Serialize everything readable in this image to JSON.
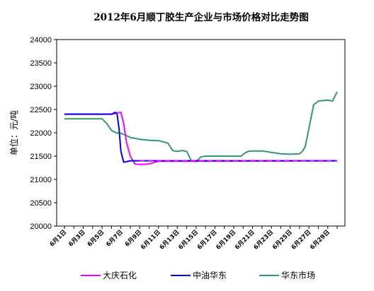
{
  "chart_data": {
    "type": "line",
    "title": "2012年6月顺丁胶生产企业与市场价格对比走势图",
    "xlabel": "",
    "ylabel": "单位：元/吨",
    "ylim": [
      20000,
      24000
    ],
    "yticks": [
      20000,
      20500,
      21000,
      21500,
      22000,
      22500,
      23000,
      23500,
      24000
    ],
    "x_tick_labels": [
      "6月1日",
      "6月3日",
      "6月5日",
      "6月7日",
      "6月9日",
      "6月11日",
      "6月13日",
      "6月15日",
      "6月17日",
      "6月19日",
      "6月21日",
      "6月23日",
      "6月25日",
      "6月27日",
      "6月29日"
    ],
    "x_range": [
      1,
      30
    ],
    "grid": false,
    "legend_position": "bottom",
    "series": [
      {
        "name": "大庆石化",
        "color": "#ff00ff",
        "x": [
          1,
          2,
          3,
          4,
          5,
          6,
          6.5,
          7,
          7.3,
          7.6,
          8,
          8.5,
          9,
          10,
          11,
          30
        ],
        "values": [
          22400,
          22400,
          22400,
          22400,
          22400,
          22400,
          22420,
          22440,
          22200,
          21800,
          21500,
          21330,
          21320,
          21330,
          21390,
          21400
        ]
      },
      {
        "name": "中油华东",
        "color": "#0000ff",
        "x": [
          1,
          2,
          3,
          4,
          5,
          6,
          6.4,
          6.6,
          6.8,
          7,
          7.3,
          7.6,
          8,
          8.5,
          9,
          10,
          11,
          30
        ],
        "values": [
          22400,
          22400,
          22400,
          22400,
          22400,
          22400,
          22440,
          22400,
          22100,
          21600,
          21370,
          21380,
          21400,
          21400,
          21400,
          21400,
          21400,
          21400
        ]
      },
      {
        "name": "华东市场",
        "color": "#339966",
        "x": [
          1,
          2,
          3,
          4,
          5,
          5.5,
          6,
          6.5,
          7,
          7.5,
          8,
          8.5,
          9,
          10,
          11,
          12,
          12.5,
          13,
          13.5,
          14,
          14.5,
          15,
          15.5,
          16,
          16.5,
          17,
          18,
          19,
          19.8,
          20,
          20.5,
          21,
          22,
          23,
          24,
          25,
          26,
          26.3,
          26.6,
          27,
          27.5,
          28,
          29,
          29.5,
          30
        ],
        "values": [
          22300,
          22300,
          22300,
          22300,
          22300,
          22200,
          22050,
          22000,
          21990,
          21950,
          21900,
          21880,
          21860,
          21840,
          21830,
          21780,
          21620,
          21600,
          21620,
          21600,
          21400,
          21380,
          21480,
          21500,
          21500,
          21500,
          21500,
          21500,
          21500,
          21540,
          21600,
          21610,
          21610,
          21580,
          21550,
          21540,
          21550,
          21600,
          21700,
          22100,
          22600,
          22680,
          22700,
          22680,
          22880
        ]
      }
    ]
  }
}
